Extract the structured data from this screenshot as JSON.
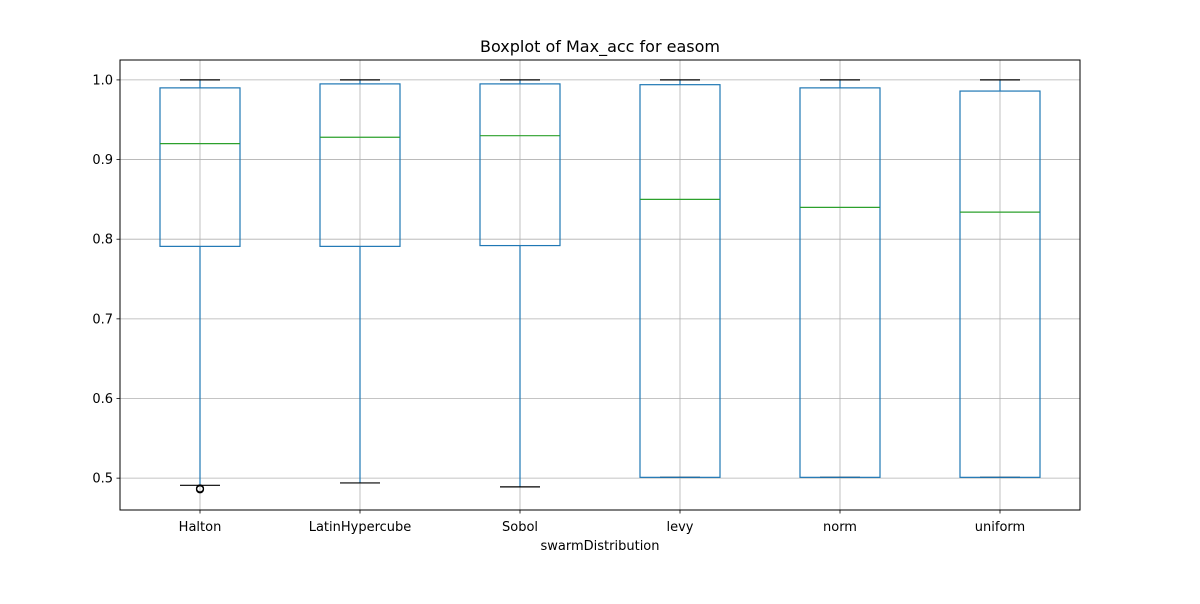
{
  "chart_data": {
    "type": "boxplot",
    "title": "Boxplot of Max_acc for easom",
    "xlabel": "swarmDistribution",
    "ylabel": "",
    "ylim": [
      0.46,
      1.025
    ],
    "yticks": [
      0.5,
      0.6,
      0.7,
      0.8,
      0.9,
      1.0
    ],
    "ytick_labels": [
      "0.5",
      "0.6",
      "0.7",
      "0.8",
      "0.9",
      "1.0"
    ],
    "grid": true,
    "categories": [
      "Halton",
      "LatinHypercube",
      "Sobol",
      "levy",
      "norm",
      "uniform"
    ],
    "boxes": [
      {
        "name": "Halton",
        "whisker_low": 0.491,
        "q1": 0.791,
        "median": 0.92,
        "q3": 0.99,
        "whisker_high": 1.0,
        "outliers": [
          0.487,
          0.486
        ]
      },
      {
        "name": "LatinHypercube",
        "whisker_low": 0.494,
        "q1": 0.791,
        "median": 0.928,
        "q3": 0.995,
        "whisker_high": 1.0,
        "outliers": []
      },
      {
        "name": "Sobol",
        "whisker_low": 0.489,
        "q1": 0.792,
        "median": 0.93,
        "q3": 0.995,
        "whisker_high": 1.0,
        "outliers": []
      },
      {
        "name": "levy",
        "whisker_low": 0.501,
        "q1": 0.501,
        "median": 0.85,
        "q3": 0.994,
        "whisker_high": 1.0,
        "outliers": []
      },
      {
        "name": "norm",
        "whisker_low": 0.501,
        "q1": 0.501,
        "median": 0.84,
        "q3": 0.99,
        "whisker_high": 1.0,
        "outliers": []
      },
      {
        "name": "uniform",
        "whisker_low": 0.501,
        "q1": 0.501,
        "median": 0.834,
        "q3": 0.986,
        "whisker_high": 1.0,
        "outliers": []
      }
    ],
    "colors": {
      "box": "#1f77b4",
      "median": "#2ca02c",
      "cap": "#000000",
      "grid": "#b0b0b0",
      "outlier": "#000000"
    }
  }
}
